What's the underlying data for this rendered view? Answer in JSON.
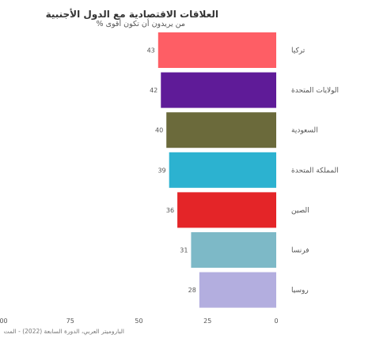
{
  "title": "العلاقات الاقتصادية مع الدول الأجنبية",
  "subtitle": "% من يريدون أن تكون أقوى",
  "source": "الباروميتر العربي، الدورة السابعة (2022) - المت",
  "chart_data": {
    "type": "bar",
    "orientation": "horizontal",
    "direction": "right-to-left",
    "title": "العلاقات الاقتصادية مع الدول الأجنبية",
    "subtitle": "% من يريدون أن تكون أقوى",
    "categories": [
      "تركيا",
      "الولايات المتحدة",
      "السعودية",
      "المملكة المتحدة",
      "الصين",
      "فرنسا",
      "روسيا"
    ],
    "values": [
      43,
      42,
      40,
      39,
      36,
      31,
      28
    ],
    "colors": [
      "#fe5e65",
      "#5f1b98",
      "#6b6a3b",
      "#2cb2d0",
      "#e42528",
      "#7db9c7",
      "#b3aedf"
    ],
    "xlim": [
      0,
      100
    ],
    "xticks": [
      0,
      25,
      50,
      75,
      100
    ],
    "xtick_labels": [
      "0",
      "25",
      "50",
      "75",
      "100"
    ],
    "grid": false,
    "legend": "none"
  }
}
